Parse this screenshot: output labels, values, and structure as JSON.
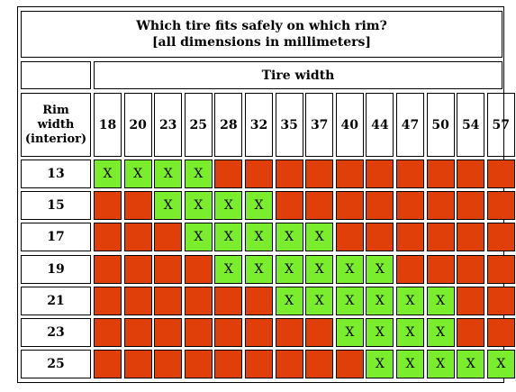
{
  "table": {
    "title_line1": "Which tire fits safely on which rim?",
    "title_line2": "[all dimensions in millimeters]",
    "col_group_label": "Tire width",
    "row_header_line1": "Rim",
    "row_header_line2": "width",
    "row_header_line3": "(interior)",
    "fit_mark": "X",
    "colors": {
      "fits": "#7aee2c",
      "does_not_fit": "#e13f0a"
    },
    "tire_widths": [
      "18",
      "20",
      "23",
      "25",
      "28",
      "32",
      "35",
      "37",
      "40",
      "44",
      "47",
      "50",
      "54",
      "57"
    ],
    "rows": [
      {
        "rim": "13",
        "fits": [
          "18",
          "20",
          "23",
          "25"
        ]
      },
      {
        "rim": "15",
        "fits": [
          "23",
          "25",
          "28",
          "32"
        ]
      },
      {
        "rim": "17",
        "fits": [
          "25",
          "28",
          "32",
          "35",
          "37"
        ]
      },
      {
        "rim": "19",
        "fits": [
          "28",
          "32",
          "35",
          "37",
          "40",
          "44"
        ]
      },
      {
        "rim": "21",
        "fits": [
          "35",
          "37",
          "40",
          "44",
          "47",
          "50"
        ]
      },
      {
        "rim": "23",
        "fits": [
          "40",
          "44",
          "47",
          "50"
        ]
      },
      {
        "rim": "25",
        "fits": [
          "44",
          "47",
          "50",
          "54",
          "57"
        ]
      }
    ]
  }
}
